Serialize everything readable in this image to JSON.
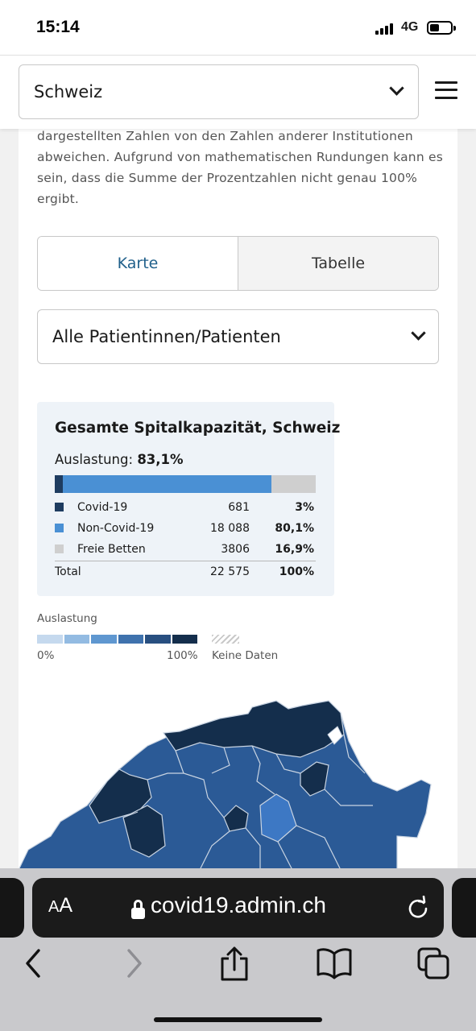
{
  "status_bar": {
    "time": "15:14",
    "network": "4G"
  },
  "header": {
    "region_select": "Schweiz",
    "chevron_icon": "chevron-down-icon",
    "menu_icon": "hamburger-menu-icon"
  },
  "intro_text": "dargestellten Zahlen von den Zahlen anderer Institutionen abweichen. Aufgrund von mathematischen Rundungen kann es sein, dass die Summe der Prozentzahlen nicht genau 100% ergibt.",
  "tabs": [
    {
      "label": "Karte",
      "active": true
    },
    {
      "label": "Tabelle",
      "active": false
    }
  ],
  "patient_select": "Alle Patientinnen/Patienten",
  "capacity": {
    "title": "Gesamte Spitalkapazität, Schweiz",
    "utilization_label": "Auslastung:",
    "utilization_value": "83,1%",
    "rows": [
      {
        "name": "Covid-19",
        "value": "681",
        "percent": "3%",
        "share": 3.0,
        "color": "#1e3c60"
      },
      {
        "name": "Non-Covid-19",
        "value": "18 088",
        "percent": "80,1%",
        "share": 80.1,
        "color": "#4a90d4"
      },
      {
        "name": "Freie Betten",
        "value": "3806",
        "percent": "16,9%",
        "share": 16.9,
        "color": "#cfcfcf"
      }
    ],
    "total": {
      "name": "Total",
      "value": "22 575",
      "percent": "100%"
    }
  },
  "legend": {
    "title": "Auslastung",
    "min": "0%",
    "max": "100%",
    "no_data": "Keine Daten",
    "steps": [
      "#c5d9ee",
      "#93bbe2",
      "#5f97d0",
      "#3f72ad",
      "#284f80",
      "#142e4c"
    ]
  },
  "map": {
    "colors": {
      "dark": "#142e4c",
      "mid": "#284f80",
      "base": "#2b5a96",
      "light": "#3d78c4",
      "border": "#c9d4e2"
    }
  },
  "browser": {
    "text_size_label_big": "A",
    "text_size_label_small": "A",
    "url": "covid19.admin.ch",
    "icons": [
      "lock-icon",
      "reload-icon",
      "back-icon",
      "forward-icon",
      "share-icon",
      "bookmarks-icon",
      "tabs-icon"
    ]
  }
}
